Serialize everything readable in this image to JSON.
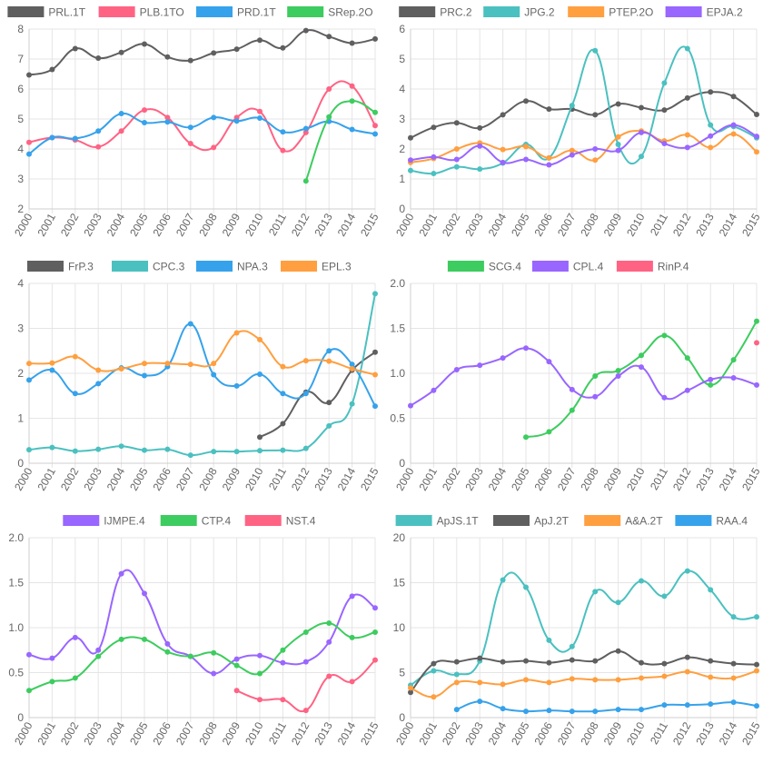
{
  "chart_data": [
    {
      "type": "line",
      "x": [
        "2000",
        "2001",
        "2002",
        "2003",
        "2004",
        "2005",
        "2006",
        "2007",
        "2008",
        "2009",
        "2010",
        "2011",
        "2012",
        "2013",
        "2014",
        "2015"
      ],
      "ylim": [
        2,
        8
      ],
      "yticks": [
        "2",
        "3",
        "4",
        "5",
        "6",
        "7",
        "8"
      ],
      "grid": true,
      "legend_position": "top",
      "series": [
        {
          "name": "PRL.1T",
          "color": "#5f5f5f",
          "values": [
            6.47,
            6.65,
            7.35,
            7.03,
            7.22,
            7.5,
            7.07,
            6.95,
            7.2,
            7.33,
            7.63,
            7.37,
            7.95,
            7.75,
            7.53,
            7.67
          ]
        },
        {
          "name": "PLB.1TO",
          "color": "#ff6384",
          "values": [
            4.22,
            4.38,
            4.3,
            4.07,
            4.6,
            5.3,
            5.05,
            4.18,
            4.05,
            5.05,
            5.25,
            3.95,
            4.55,
            6.0,
            6.1,
            4.78
          ]
        },
        {
          "name": "PRD.1T",
          "color": "#36a2eb",
          "values": [
            3.83,
            4.38,
            4.35,
            4.6,
            5.18,
            4.88,
            4.9,
            4.72,
            5.05,
            4.93,
            5.03,
            4.57,
            4.68,
            4.92,
            4.65,
            4.5
          ]
        },
        {
          "name": "SRep.2O",
          "color": "#3dcc5f",
          "values": [
            null,
            null,
            null,
            null,
            null,
            null,
            null,
            null,
            null,
            null,
            null,
            null,
            2.93,
            5.07,
            5.6,
            5.22
          ]
        }
      ]
    },
    {
      "type": "line",
      "x": [
        "2000",
        "2001",
        "2002",
        "2003",
        "2004",
        "2005",
        "2006",
        "2007",
        "2008",
        "2009",
        "2010",
        "2011",
        "2012",
        "2013",
        "2014",
        "2015"
      ],
      "ylim": [
        0,
        6
      ],
      "yticks": [
        "0",
        "1",
        "2",
        "3",
        "4",
        "5",
        "6"
      ],
      "grid": true,
      "legend_position": "top",
      "series": [
        {
          "name": "PRC.2",
          "color": "#5f5f5f",
          "values": [
            2.37,
            2.72,
            2.87,
            2.7,
            3.14,
            3.6,
            3.33,
            3.33,
            3.14,
            3.5,
            3.38,
            3.3,
            3.7,
            3.9,
            3.75,
            3.15
          ]
        },
        {
          "name": "JPG.2",
          "color": "#4bc0c0",
          "values": [
            1.28,
            1.18,
            1.4,
            1.33,
            1.53,
            2.15,
            1.7,
            3.45,
            5.28,
            2.15,
            1.75,
            4.2,
            5.35,
            2.8,
            2.75,
            2.37
          ]
        },
        {
          "name": "PTEP.2O",
          "color": "#ff9f40",
          "values": [
            1.55,
            1.68,
            2.0,
            2.2,
            1.98,
            2.08,
            1.7,
            1.95,
            1.63,
            2.4,
            2.6,
            2.27,
            2.47,
            2.05,
            2.5,
            1.9
          ]
        },
        {
          "name": "EPJA.2",
          "color": "#9966ff",
          "values": [
            1.63,
            1.73,
            1.65,
            2.1,
            1.55,
            1.65,
            1.47,
            1.8,
            2.0,
            1.95,
            2.55,
            2.18,
            2.05,
            2.43,
            2.8,
            2.42
          ]
        }
      ]
    },
    {
      "type": "line",
      "x": [
        "2000",
        "2001",
        "2002",
        "2003",
        "2004",
        "2005",
        "2006",
        "2007",
        "2008",
        "2009",
        "2010",
        "2011",
        "2012",
        "2013",
        "2014",
        "2015"
      ],
      "ylim": [
        0,
        4
      ],
      "yticks": [
        "0",
        "1",
        "2",
        "3",
        "4"
      ],
      "grid": true,
      "legend_position": "top",
      "series": [
        {
          "name": "FrP.3",
          "color": "#5f5f5f",
          "values": [
            null,
            null,
            null,
            null,
            null,
            null,
            null,
            null,
            null,
            null,
            0.58,
            0.88,
            1.58,
            1.35,
            2.07,
            2.47
          ]
        },
        {
          "name": "CPC.3",
          "color": "#4bc0c0",
          "values": [
            0.3,
            0.35,
            0.27,
            0.31,
            0.38,
            0.29,
            0.31,
            0.18,
            0.26,
            0.26,
            0.28,
            0.29,
            0.33,
            0.83,
            1.32,
            3.77
          ]
        },
        {
          "name": "NPA.3",
          "color": "#36a2eb",
          "values": [
            1.85,
            2.07,
            1.55,
            1.77,
            2.12,
            1.95,
            2.15,
            3.1,
            1.97,
            1.72,
            1.98,
            1.55,
            1.55,
            2.5,
            2.2,
            1.27
          ]
        },
        {
          "name": "EPL.3",
          "color": "#ff9f40",
          "values": [
            2.22,
            2.23,
            2.37,
            2.07,
            2.1,
            2.22,
            2.22,
            2.2,
            2.22,
            2.9,
            2.75,
            2.15,
            2.28,
            2.27,
            2.1,
            1.97
          ]
        }
      ]
    },
    {
      "type": "line",
      "x": [
        "2000",
        "2001",
        "2002",
        "2003",
        "2004",
        "2005",
        "2006",
        "2007",
        "2008",
        "2009",
        "2010",
        "2011",
        "2012",
        "2013",
        "2014",
        "2015"
      ],
      "ylim": [
        0,
        2
      ],
      "yticks": [
        "0",
        "0.5",
        "1.0",
        "1.5",
        "2.0"
      ],
      "grid": true,
      "legend_position": "top",
      "series": [
        {
          "name": "SCG.4",
          "color": "#3dcc5f",
          "values": [
            null,
            null,
            null,
            null,
            null,
            0.29,
            0.35,
            0.59,
            0.97,
            1.03,
            1.2,
            1.42,
            1.17,
            0.87,
            1.15,
            1.58
          ]
        },
        {
          "name": "CPL.4",
          "color": "#9966ff",
          "values": [
            0.64,
            0.81,
            1.04,
            1.09,
            1.17,
            1.28,
            1.13,
            0.82,
            0.74,
            0.97,
            1.07,
            0.73,
            0.81,
            0.93,
            0.95,
            0.87
          ]
        },
        {
          "name": "RinP.4",
          "color": "#ff6384",
          "values": [
            null,
            null,
            null,
            null,
            null,
            null,
            null,
            null,
            null,
            null,
            null,
            null,
            null,
            null,
            null,
            1.34
          ]
        }
      ]
    },
    {
      "type": "line",
      "x": [
        "2000",
        "2001",
        "2002",
        "2003",
        "2004",
        "2005",
        "2006",
        "2007",
        "2008",
        "2009",
        "2010",
        "2011",
        "2012",
        "2013",
        "2014",
        "2015"
      ],
      "ylim": [
        0,
        2
      ],
      "yticks": [
        "0",
        "0.5",
        "1.0",
        "1.5",
        "2.0"
      ],
      "grid": true,
      "legend_position": "top",
      "series": [
        {
          "name": "IJMPE.4",
          "color": "#9966ff",
          "values": [
            0.7,
            0.66,
            0.89,
            0.75,
            1.6,
            1.38,
            0.82,
            0.68,
            0.49,
            0.65,
            0.69,
            0.61,
            0.62,
            0.84,
            1.35,
            1.22
          ]
        },
        {
          "name": "CTP.4",
          "color": "#3dcc5f",
          "values": [
            0.3,
            0.4,
            0.44,
            0.68,
            0.87,
            0.87,
            0.73,
            0.68,
            0.72,
            0.58,
            0.49,
            0.75,
            0.95,
            1.05,
            0.89,
            0.95
          ]
        },
        {
          "name": "NST.4",
          "color": "#ff6384",
          "values": [
            null,
            null,
            null,
            null,
            null,
            null,
            null,
            null,
            null,
            0.3,
            0.2,
            0.2,
            0.08,
            0.46,
            0.4,
            0.64
          ]
        }
      ]
    },
    {
      "type": "line",
      "x": [
        "2000",
        "2001",
        "2002",
        "2003",
        "2004",
        "2005",
        "2006",
        "2007",
        "2008",
        "2009",
        "2010",
        "2011",
        "2012",
        "2013",
        "2014",
        "2015"
      ],
      "ylim": [
        0,
        20
      ],
      "yticks": [
        "0",
        "5",
        "10",
        "15",
        "20"
      ],
      "grid": true,
      "legend_position": "top",
      "series": [
        {
          "name": "ApJS.1T",
          "color": "#4bc0c0",
          "values": [
            3.6,
            5.2,
            4.8,
            6.3,
            15.3,
            14.5,
            8.6,
            7.9,
            14.0,
            12.8,
            15.2,
            13.5,
            16.3,
            14.2,
            11.2,
            11.2
          ]
        },
        {
          "name": "ApJ.2T",
          "color": "#5f5f5f",
          "values": [
            2.8,
            6.0,
            6.2,
            6.6,
            6.2,
            6.3,
            6.1,
            6.4,
            6.3,
            7.4,
            6.1,
            6.0,
            6.7,
            6.3,
            6.0,
            5.9
          ]
        },
        {
          "name": "A&A.2T",
          "color": "#ff9f40",
          "values": [
            3.3,
            2.3,
            3.9,
            3.9,
            3.7,
            4.2,
            3.9,
            4.3,
            4.2,
            4.2,
            4.4,
            4.6,
            5.1,
            4.5,
            4.4,
            5.2
          ]
        },
        {
          "name": "RAA.4",
          "color": "#36a2eb",
          "values": [
            null,
            null,
            0.9,
            1.8,
            1.0,
            0.7,
            0.8,
            0.7,
            0.7,
            0.9,
            0.9,
            1.4,
            1.4,
            1.5,
            1.7,
            1.3
          ]
        }
      ]
    }
  ]
}
